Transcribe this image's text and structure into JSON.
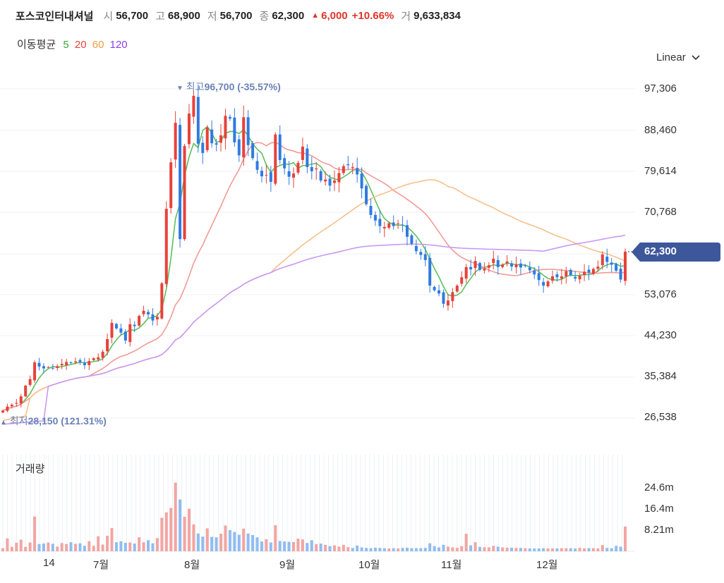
{
  "header": {
    "name": "포스코인터내셔널",
    "open_label": "시",
    "open": "56,700",
    "high_label": "고",
    "high": "68,900",
    "low_label": "저",
    "low": "56,700",
    "close_label": "종",
    "close": "62,300",
    "change": "6,000",
    "change_pct": "+10.66%",
    "volume_label": "거",
    "volume": "9,633,834"
  },
  "moving_average": {
    "label": "이동평균",
    "periods": [
      {
        "value": "5",
        "color": "#3aa53a"
      },
      {
        "value": "20",
        "color": "#e8413a"
      },
      {
        "value": "60",
        "color": "#f19a44"
      },
      {
        "value": "120",
        "color": "#8a3ee8"
      }
    ]
  },
  "scale_selector": {
    "label": "Linear"
  },
  "colors": {
    "up": "#e8413a",
    "down": "#2f7be0",
    "badge": "#3d579b",
    "annotation": "#6a82b8"
  },
  "chart_data": {
    "type": "candlestick",
    "price_ticks": [
      "97,306",
      "88,460",
      "79,614",
      "70,768",
      "62,300",
      "53,076",
      "44,230",
      "35,384",
      "26,538"
    ],
    "ylim": [
      24000,
      100000
    ],
    "current_price": 62300,
    "current_price_label": "62,300",
    "high_annotation": {
      "label": "최고",
      "value_text": "96,700 (-35.57%)",
      "value": 96700
    },
    "low_annotation": {
      "label": "최저",
      "value_text": "28,150 (121.31%)",
      "value": 28150
    },
    "x_labels": [
      "14",
      "7월",
      "8월",
      "9월",
      "10월",
      "11월",
      "12월"
    ],
    "close": [
      28150,
      29000,
      29400,
      29800,
      31200,
      33500,
      34900,
      38500,
      37600,
      37200,
      37500,
      37300,
      37700,
      38200,
      38600,
      38400,
      38700,
      38600,
      37900,
      38800,
      39400,
      39600,
      40800,
      43500,
      47000,
      45800,
      44900,
      43200,
      46700,
      46300,
      48500,
      49600,
      48800,
      47500,
      48300,
      55500,
      71500,
      81500,
      90000,
      65000,
      85000,
      92000,
      95800,
      85500,
      83500,
      89000,
      85600,
      85300,
      87300,
      91500,
      90900,
      85800,
      83000,
      91200,
      85200,
      82400,
      79900,
      78500,
      78800,
      77300,
      87500,
      82000,
      80200,
      78400,
      79100,
      81400,
      84900,
      80500,
      79600,
      80200,
      77600,
      77800,
      76500,
      77600,
      79200,
      80700,
      80900,
      80500,
      78900,
      75900,
      72500,
      70200,
      69000,
      67800,
      67600,
      68400,
      67800,
      68400,
      68000,
      65500,
      64000,
      62400,
      61600,
      60500,
      55000,
      54000,
      53300,
      51100,
      51800,
      53600,
      55000,
      56800,
      59000,
      58500,
      60300,
      58400,
      58700,
      59400,
      60800,
      59000,
      59500,
      60200,
      59100,
      59600,
      58900,
      59200,
      58300,
      57400,
      56200,
      55000,
      55900,
      57000,
      56800,
      57000,
      58100,
      57300,
      56500,
      57100,
      58000,
      57800,
      58600,
      59100,
      61700,
      60100,
      59500,
      58200,
      56300,
      62300
    ],
    "volume_ticks": [
      "24.6m",
      "16.4m",
      "8.21m"
    ],
    "volume_max": 30000000,
    "volume": [
      1.2,
      5.0,
      1.7,
      3.3,
      4.5,
      1.7,
      3.4,
      13.5,
      2.8,
      3.0,
      3.4,
      2.9,
      1.8,
      3.2,
      2.8,
      3.5,
      2.9,
      3.1,
      2.1,
      3.9,
      2.1,
      5.8,
      2.6,
      6.0,
      9.0,
      3.5,
      3.9,
      3.3,
      3.4,
      3.0,
      5.4,
      3.5,
      4.3,
      3.1,
      5.1,
      13.0,
      15.1,
      16.8,
      26.6,
      20.1,
      13.4,
      16.5,
      10.4,
      6.9,
      5.7,
      8.9,
      5.6,
      5.4,
      6.8,
      10.0,
      8.2,
      7.5,
      6.4,
      8.8,
      6.9,
      6.3,
      5.4,
      3.8,
      4.7,
      3.4,
      10.1,
      4.0,
      3.8,
      3.7,
      3.6,
      4.9,
      4.6,
      3.2,
      4.3,
      2.8,
      3.0,
      2.5,
      2.0,
      2.3,
      1.8,
      2.5,
      1.6,
      1.3,
      2.2,
      1.5,
      1.3,
      1.2,
      1.4,
      1.3,
      1.2,
      1.1,
      1.2,
      1.1,
      1.3,
      1.4,
      1.2,
      1.2,
      1.2,
      1.3,
      3.1,
      2.0,
      1.5,
      2.5,
      1.8,
      1.5,
      1.3,
      2.0,
      6.8,
      2.3,
      3.5,
      1.7,
      1.6,
      1.5,
      2.1,
      1.8,
      1.5,
      1.4,
      1.4,
      1.3,
      1.3,
      1.2,
      1.1,
      1.1,
      1.1,
      1.2,
      1.1,
      1.1,
      1.1,
      1.2,
      1.2,
      1.2,
      1.1,
      1.3,
      1.1,
      1.2,
      1.2,
      1.1,
      2.4,
      1.3,
      1.2,
      2.1,
      1.8,
      9.6
    ]
  },
  "volume_panel": {
    "title": "거래량"
  }
}
